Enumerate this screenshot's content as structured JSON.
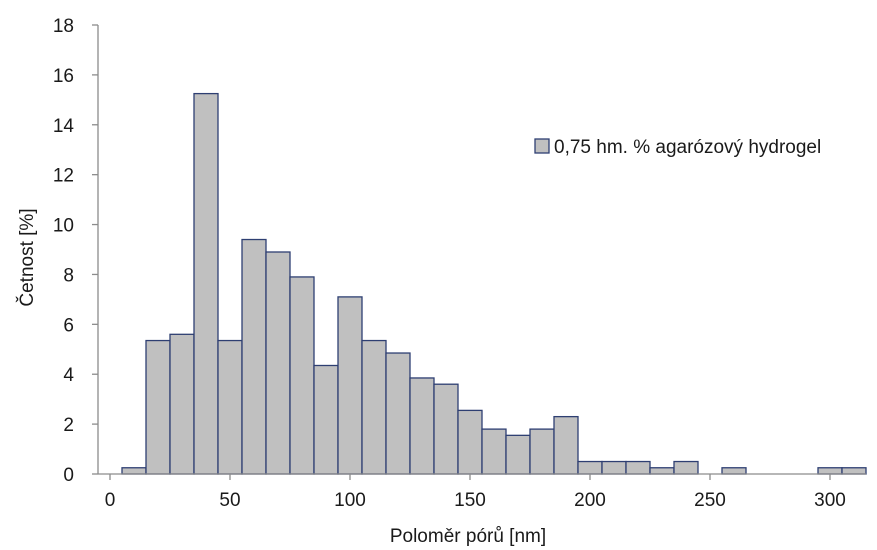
{
  "chart_data": {
    "type": "bar",
    "xlabel": "Poloměr pórů [nm]",
    "ylabel": "Četnost [%]",
    "xlim": [
      -5,
      315
    ],
    "ylim": [
      0,
      18
    ],
    "xticks": [
      0,
      50,
      100,
      150,
      200,
      250,
      300
    ],
    "yticks": [
      0,
      2,
      4,
      6,
      8,
      10,
      12,
      14,
      16,
      18
    ],
    "bin_width": 10,
    "grid": false,
    "legend_position": "right",
    "colors": {
      "bar_fill": "#c0c0c0",
      "bar_stroke": "#2e3f72",
      "axis": "#8c8c8c"
    },
    "series": [
      {
        "name": "0,75 hm. % agarózový hydrogel",
        "bin_centers": [
          10,
          20,
          30,
          40,
          50,
          60,
          70,
          80,
          90,
          100,
          110,
          120,
          130,
          140,
          150,
          160,
          170,
          180,
          190,
          200,
          210,
          220,
          230,
          240,
          250,
          260,
          270,
          280,
          290,
          300,
          310
        ],
        "values": [
          0.25,
          5.35,
          5.6,
          15.25,
          5.35,
          9.4,
          8.9,
          7.9,
          4.35,
          7.1,
          5.35,
          4.85,
          3.85,
          3.6,
          2.55,
          1.8,
          1.55,
          1.8,
          2.3,
          0.5,
          0.5,
          0.5,
          0.25,
          0.5,
          0,
          0.25,
          0,
          0,
          0,
          0.25,
          0.25
        ]
      }
    ]
  }
}
